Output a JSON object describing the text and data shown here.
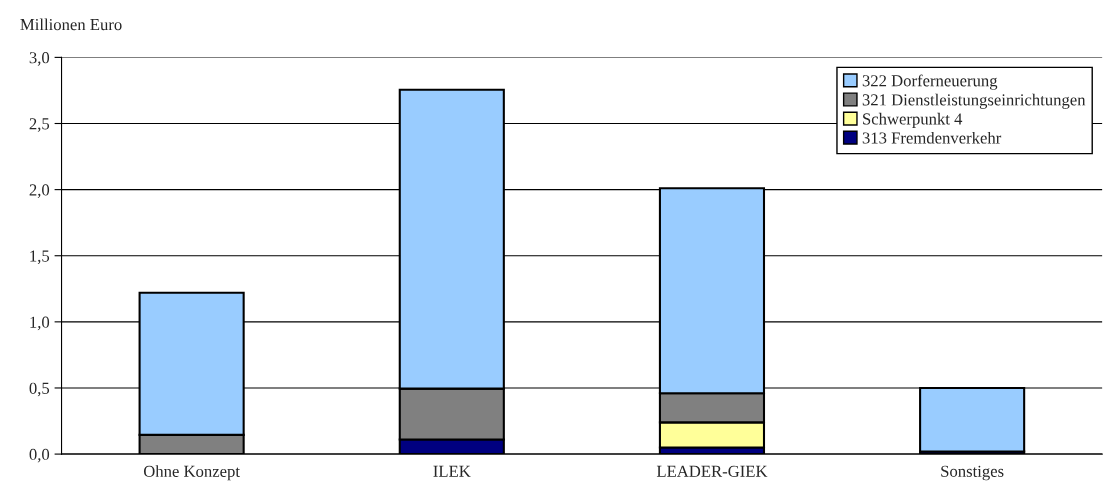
{
  "chart_data": {
    "type": "bar",
    "stacked": true,
    "ylabel": "Millionen Euro",
    "categories": [
      "Ohne Konzept",
      "ILEK",
      "LEADER-GIEK",
      "Sonstiges"
    ],
    "series": [
      {
        "name": "313 Fremdenverkehr",
        "color": "#000080",
        "values": [
          0,
          0.11,
          0.05,
          0.02
        ]
      },
      {
        "name": "Schwerpunkt 4",
        "color": "#ffff99",
        "values": [
          0,
          0,
          0.19,
          0
        ]
      },
      {
        "name": "321 Dienstleistungseinrichtungen",
        "color": "#808080",
        "values": [
          0.145,
          0.385,
          0.22,
          0
        ]
      },
      {
        "name": "322 Dorferneuerung",
        "color": "#99ccff",
        "values": [
          1.075,
          2.26,
          1.55,
          0.48
        ]
      }
    ],
    "ylim": [
      0,
      3.0
    ],
    "yticks": [
      {
        "value": 0,
        "label": "0,0"
      },
      {
        "value": 0.5,
        "label": "0,5"
      },
      {
        "value": 1.0,
        "label": "1,0"
      },
      {
        "value": 1.5,
        "label": "1,5"
      },
      {
        "value": 2.0,
        "label": "2,0"
      },
      {
        "value": 2.5,
        "label": "2,5"
      },
      {
        "value": 3.0,
        "label": "3,0"
      }
    ],
    "grid": "y",
    "legend": "top right"
  }
}
